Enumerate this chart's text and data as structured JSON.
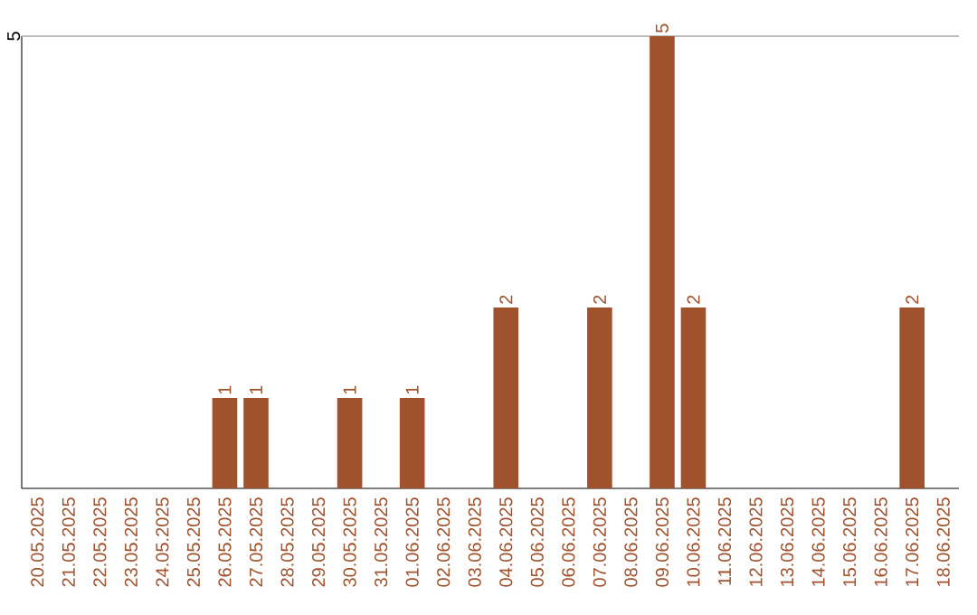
{
  "chart_data": {
    "type": "bar",
    "categories": [
      "20.05.2025",
      "21.05.2025",
      "22.05.2025",
      "23.05.2025",
      "24.05.2025",
      "25.05.2025",
      "26.05.2025",
      "27.05.2025",
      "28.05.2025",
      "29.05.2025",
      "30.05.2025",
      "31.05.2025",
      "01.06.2025",
      "02.06.2025",
      "03.06.2025",
      "04.06.2025",
      "05.06.2025",
      "06.06.2025",
      "07.06.2025",
      "08.06.2025",
      "09.06.2025",
      "10.06.2025",
      "11.06.2025",
      "12.06.2025",
      "13.06.2025",
      "14.06.2025",
      "15.06.2025",
      "16.06.2025",
      "17.06.2025",
      "18.06.2025"
    ],
    "values": [
      0,
      0,
      0,
      0,
      0,
      0,
      1,
      1,
      0,
      0,
      1,
      0,
      1,
      0,
      0,
      2,
      0,
      0,
      2,
      0,
      5,
      2,
      0,
      0,
      0,
      0,
      0,
      0,
      2,
      0
    ],
    "value_labels": [
      null,
      null,
      null,
      null,
      null,
      null,
      "1",
      "1",
      null,
      null,
      "1",
      null,
      "1",
      null,
      null,
      "2",
      null,
      null,
      "2",
      null,
      "5",
      "2",
      null,
      null,
      null,
      null,
      null,
      null,
      "2",
      null
    ],
    "color": "#a0522d",
    "ylim": [
      0,
      5
    ],
    "yticks": [
      5
    ]
  }
}
